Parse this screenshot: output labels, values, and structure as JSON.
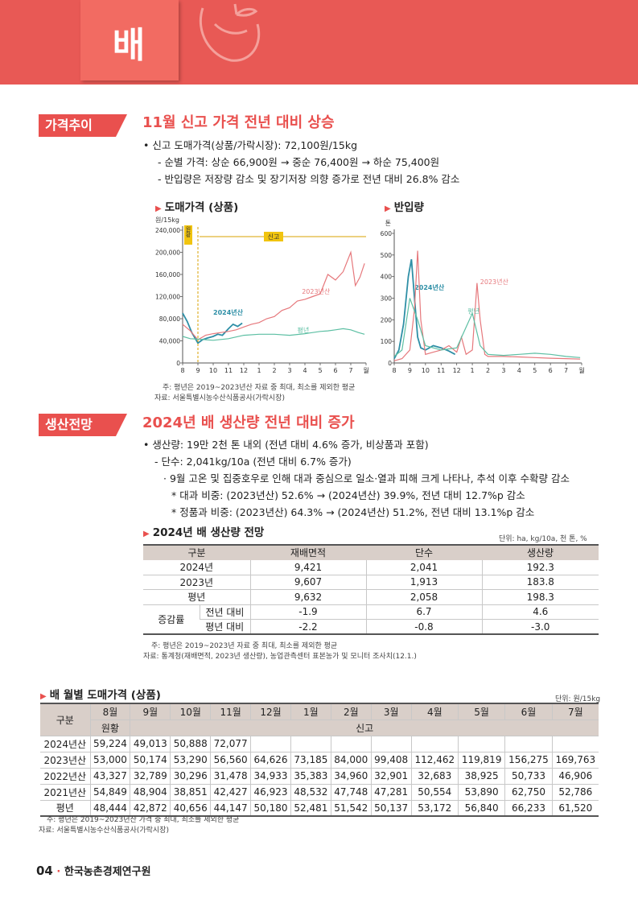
{
  "header": {
    "title": "배"
  },
  "sec1": {
    "badge": "가격추이",
    "title": "11월 신고 가격 전년 대비 상승",
    "b1": "• 신고 도매가격(상품/가락시장): 72,100원/15kg",
    "b2": "- 순별 가격: 상순 66,900원 → 중순 76,400원 → 하순 75,400원",
    "b3": "- 반입량은 저장량 감소 및 장기저장 의향 증가로 전년 대비 26.8% 감소",
    "chart1_title": "도매가격 (상품)",
    "chart2_title": "반입량",
    "note1": "주: 평년은 2019~2023년산 자료 중 최대, 최소를 제외한 평균",
    "note2": "자료: 서울특별시농수산식품공사(가락시장)"
  },
  "chart_data": [
    {
      "type": "line",
      "title": "도매가격 (상품)",
      "ylabel": "원/15kg",
      "ylim": [
        0,
        240000
      ],
      "yticks": [
        "0",
        "40,000",
        "80,000",
        "120,000",
        "160,000",
        "200,000",
        "240,000"
      ],
      "xticks": [
        "8",
        "9",
        "10",
        "11",
        "12",
        "1",
        "2",
        "3",
        "4",
        "5",
        "6",
        "7",
        "월"
      ],
      "annotations": [
        "원황",
        "신고"
      ],
      "series": [
        {
          "name": "2024년산",
          "color": "#2e8fa6",
          "x": [
            8,
            8.3,
            8.6,
            9,
            9.3,
            9.6,
            10,
            10.3,
            10.6,
            11,
            11.3,
            11.6,
            11.9
          ],
          "y": [
            90000,
            75000,
            55000,
            36000,
            42000,
            45000,
            48000,
            52000,
            50000,
            62000,
            70000,
            66000,
            72000
          ]
        },
        {
          "name": "2023년산",
          "color": "#e6787c",
          "x": [
            8,
            8.5,
            9,
            9.5,
            10,
            10.5,
            11,
            11.5,
            12,
            12.5,
            13,
            13.5,
            14,
            14.5,
            15,
            15.5,
            16,
            16.5,
            17,
            17.5,
            18,
            18.5,
            19,
            19.3,
            19.6,
            19.9
          ],
          "y": [
            70000,
            58000,
            42000,
            50000,
            53000,
            55000,
            57000,
            60000,
            65000,
            70000,
            73000,
            80000,
            84000,
            95000,
            100000,
            112000,
            115000,
            120000,
            125000,
            160000,
            150000,
            165000,
            200000,
            140000,
            155000,
            180000
          ]
        },
        {
          "name": "평년",
          "color": "#5cbfa3",
          "x": [
            8,
            8.5,
            9,
            9.5,
            10,
            11,
            12,
            13,
            14,
            15,
            16,
            17,
            17.5,
            18,
            18.5,
            19,
            19.5,
            19.9
          ],
          "y": [
            48000,
            44000,
            43000,
            42000,
            41000,
            44000,
            50000,
            52000,
            52000,
            50000,
            53000,
            57000,
            58000,
            60000,
            62000,
            60000,
            55000,
            52000
          ]
        }
      ]
    },
    {
      "type": "line",
      "title": "반입량",
      "ylabel": "톤",
      "ylim": [
        0,
        600
      ],
      "yticks": [
        "0",
        "100",
        "200",
        "300",
        "400",
        "500",
        "600"
      ],
      "xticks": [
        "8",
        "9",
        "10",
        "11",
        "12",
        "1",
        "2",
        "3",
        "4",
        "5",
        "6",
        "7",
        "월"
      ],
      "series": [
        {
          "name": "2024년산",
          "color": "#2e8fa6",
          "x": [
            8,
            8.3,
            8.6,
            8.9,
            9.1,
            9.3,
            9.5,
            9.7,
            10,
            10.5,
            11,
            11.5,
            11.9
          ],
          "y": [
            20,
            60,
            180,
            400,
            480,
            300,
            120,
            70,
            60,
            80,
            70,
            55,
            40
          ]
        },
        {
          "name": "2023년산",
          "color": "#e6787c",
          "x": [
            8,
            8.5,
            9,
            9.3,
            9.5,
            9.7,
            10,
            10.5,
            11,
            11.5,
            12,
            12.3,
            12.6,
            13,
            13.3,
            13.5,
            13.8,
            14,
            15,
            16,
            17,
            18,
            19,
            19.9
          ],
          "y": [
            10,
            20,
            60,
            250,
            520,
            200,
            40,
            50,
            60,
            80,
            50,
            120,
            40,
            60,
            370,
            200,
            40,
            30,
            30,
            28,
            25,
            22,
            20,
            18
          ]
        },
        {
          "name": "평년",
          "color": "#5cbfa3",
          "x": [
            8,
            8.5,
            9,
            9.5,
            10,
            11,
            12,
            12.5,
            13,
            13.5,
            14,
            15,
            16,
            17,
            18,
            19,
            19.9
          ],
          "y": [
            30,
            60,
            300,
            200,
            80,
            60,
            70,
            150,
            230,
            80,
            40,
            35,
            40,
            45,
            40,
            30,
            25
          ]
        }
      ]
    }
  ],
  "sec2": {
    "badge": "생산전망",
    "title": "2024년 배 생산량 전년 대비 증가",
    "b1": "• 생산량: 19만 2천 톤 내외 (전년 대비 4.6% 증가, 비상품과 포함)",
    "b2": "- 단수: 2,041kg/10a (전년 대비 6.7% 증가)",
    "b3": "· 9월 고온 및 집중호우로 인해 대과 중심으로 일소·열과 피해 크게 나타나, 추석 이후 수확량 감소",
    "b4": "* 대과 비중: (2023년산) 52.6% → (2024년산) 39.9%, 전년 대비 12.7%p 감소",
    "b5": "* 정품과 비중: (2023년산) 64.3% → (2024년산) 51.2%, 전년 대비 13.1%p 감소",
    "table_title": "2024년 배 생산량 전망",
    "table_unit": "단위: ha, kg/10a, 천 톤, %",
    "headers": [
      "구분",
      "재배면적",
      "단수",
      "생산량"
    ],
    "rows": [
      [
        "2024년",
        "9,421",
        "2,041",
        "192.3"
      ],
      [
        "2023년",
        "9,607",
        "1,913",
        "183.8"
      ],
      [
        "평년",
        "9,632",
        "2,058",
        "198.3"
      ]
    ],
    "change_label": "증감률",
    "change_rows": [
      [
        "전년 대비",
        "-1.9",
        "6.7",
        "4.6"
      ],
      [
        "평년 대비",
        "-2.2",
        "-0.8",
        "-3.0"
      ]
    ],
    "note1": "주: 평년은 2019~2023년 자료 중 최대, 최소를 제외한 평균",
    "note2": "자료: 통계청(재배면적, 2023년 생산량), 농업관측센터 표본농가 및 모니터 조사치(12.1.)"
  },
  "sec3": {
    "table_title": "배 월별 도매가격 (상품)",
    "table_unit": "단위: 원/15kg",
    "corner": "구분",
    "months": [
      "8월",
      "9월",
      "10월",
      "11월",
      "12월",
      "1월",
      "2월",
      "3월",
      "4월",
      "5월",
      "6월",
      "7월"
    ],
    "variety1": "원황",
    "variety2": "신고",
    "rows": [
      [
        "2024년산",
        "59,224",
        "49,013",
        "50,888",
        "72,077",
        "",
        "",
        "",
        "",
        "",
        "",
        "",
        ""
      ],
      [
        "2023년산",
        "53,000",
        "50,174",
        "53,290",
        "56,560",
        "64,626",
        "73,185",
        "84,000",
        "99,408",
        "112,462",
        "119,819",
        "156,275",
        "169,763"
      ],
      [
        "2022년산",
        "43,327",
        "32,789",
        "30,296",
        "31,478",
        "34,933",
        "35,383",
        "34,960",
        "32,901",
        "32,683",
        "38,925",
        "50,733",
        "46,906"
      ],
      [
        "2021년산",
        "54,849",
        "48,904",
        "38,851",
        "42,427",
        "46,923",
        "48,532",
        "47,748",
        "47,281",
        "50,554",
        "53,890",
        "62,750",
        "52,786"
      ],
      [
        "평년",
        "48,444",
        "42,872",
        "40,656",
        "44,147",
        "50,180",
        "52,481",
        "51,542",
        "50,137",
        "53,172",
        "56,840",
        "66,233",
        "61,520"
      ]
    ],
    "note1": "주: 평년은 2019~2023년산 가격 중 최대, 최소를 제외한 평균",
    "note2": "자료: 서울특별시농수산식품공사(가락시장)"
  },
  "footer": {
    "page": "04",
    "sep": "·",
    "org": "한국농촌경제연구원"
  }
}
